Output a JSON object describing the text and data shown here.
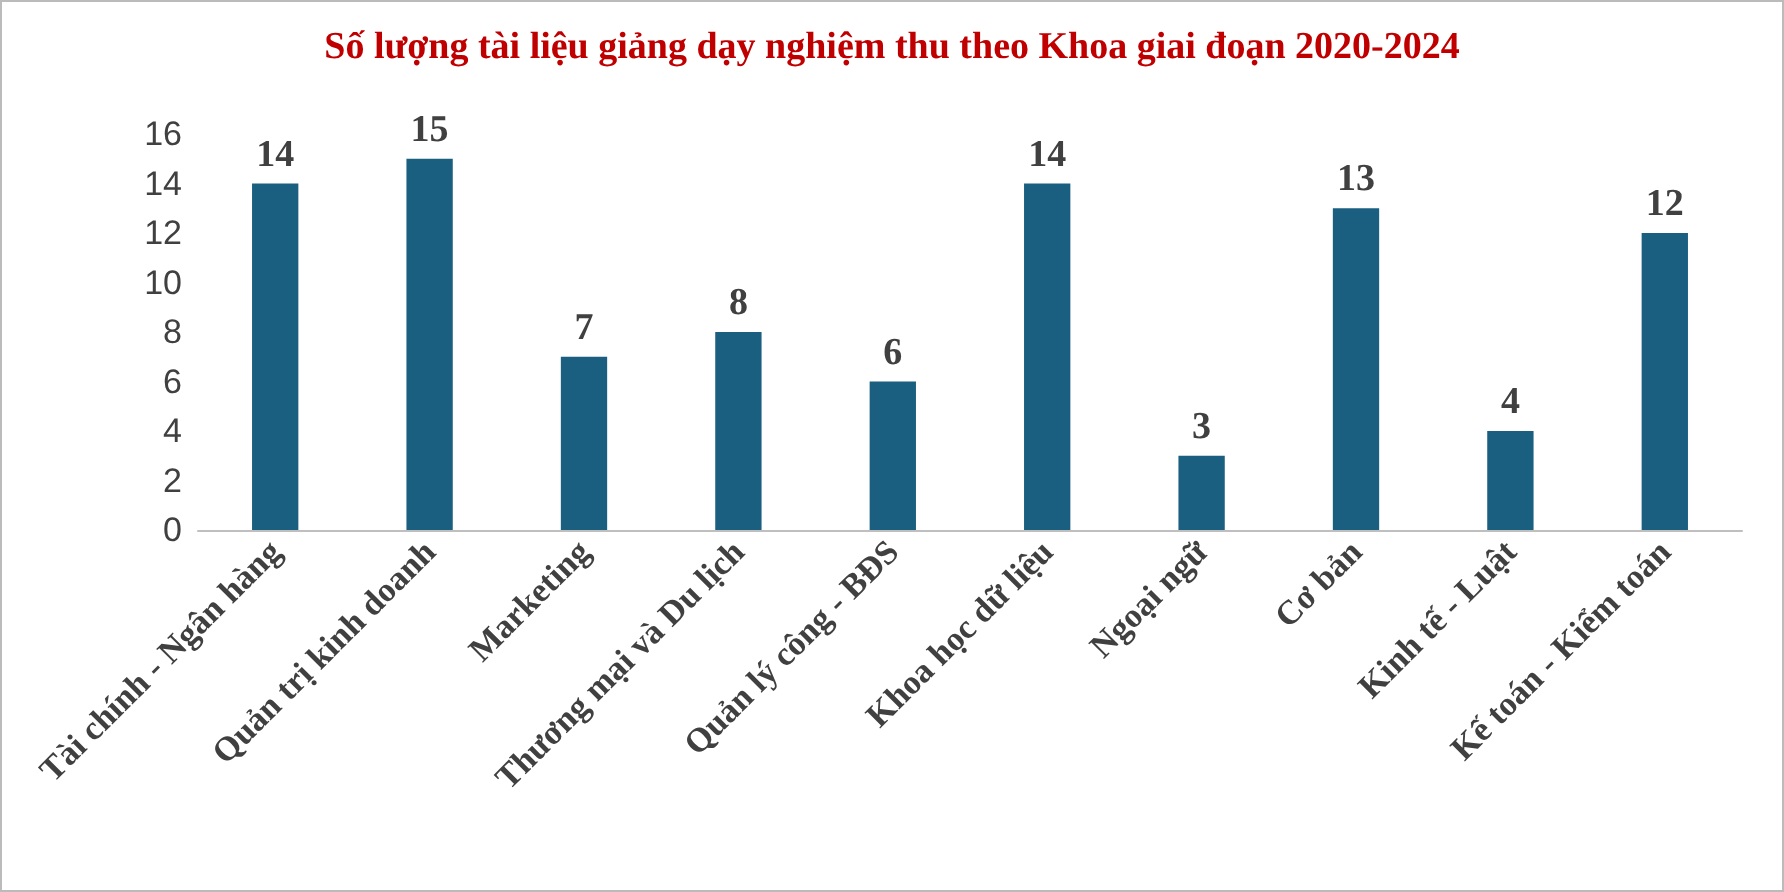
{
  "chart_data": {
    "type": "bar",
    "title": "Số lượng tài liệu giảng dạy nghiệm thu theo Khoa giai đoạn 2020-2024",
    "categories": [
      "Tài chính - Ngân hàng",
      "Quản trị kinh doanh",
      "Marketing",
      "Thương mại và Du lịch",
      "Quản lý công - BĐS",
      "Khoa học dữ liệu",
      "Ngoại ngữ",
      "Cơ bản",
      "Kinh tế - Luật",
      "Kế toán - Kiểm toán"
    ],
    "values": [
      14,
      15,
      7,
      8,
      6,
      14,
      3,
      13,
      4,
      12
    ],
    "color": "#1a5e80",
    "ylim": [
      0,
      16
    ],
    "yticks": [
      0,
      2,
      4,
      6,
      8,
      10,
      12,
      14,
      16
    ],
    "grid": false,
    "data_labels": true
  }
}
